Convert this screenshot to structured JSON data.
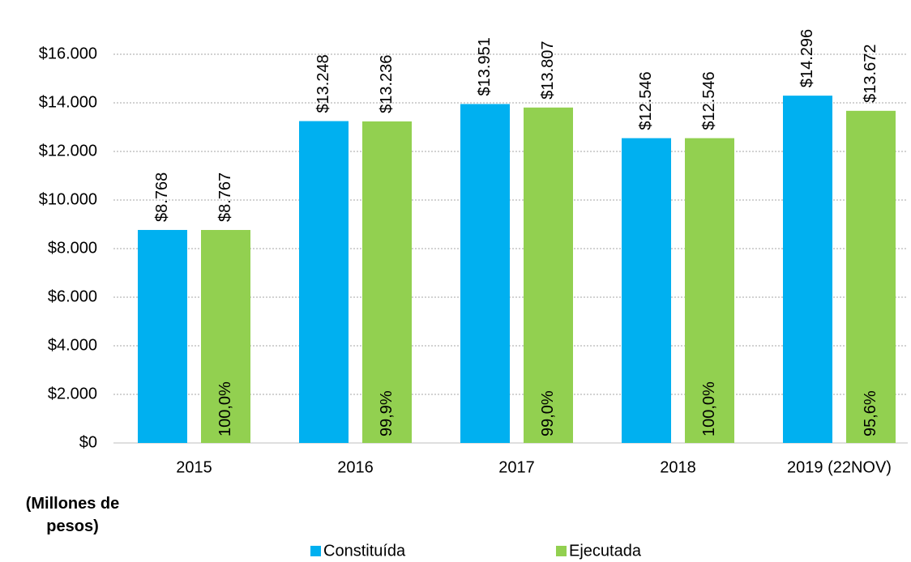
{
  "chart_data": {
    "type": "bar",
    "y_label": "(Millones de pesos)",
    "categories": [
      "2015",
      "2016",
      "2017",
      "2018",
      "2019 (22NOV)"
    ],
    "series": [
      {
        "name": "Constituída",
        "color": "#00b0f0",
        "values": [
          8768,
          13248,
          13951,
          12546,
          14296
        ],
        "value_labels": [
          "$8.768",
          "$13.248",
          "$13.951",
          "$12.546",
          "$14.296"
        ]
      },
      {
        "name": "Ejecutada",
        "color": "#92d050",
        "values": [
          8767,
          13236,
          13807,
          12546,
          13672
        ],
        "value_labels": [
          "$8.767",
          "$13.236",
          "$13.807",
          "$12.546",
          "$13.672"
        ]
      }
    ],
    "execution_percent": {
      "values": [
        100.0,
        99.9,
        99.0,
        100.0,
        95.6
      ],
      "value_labels": [
        "100,0%",
        "99,9%",
        "99,0%",
        "100,0%",
        "95,6%"
      ]
    },
    "ylim": [
      0,
      16000
    ],
    "yticks": [
      {
        "value": 0,
        "label": "$0"
      },
      {
        "value": 2000,
        "label": "$2.000"
      },
      {
        "value": 4000,
        "label": "$4.000"
      },
      {
        "value": 6000,
        "label": "$6.000"
      },
      {
        "value": 8000,
        "label": "$8.000"
      },
      {
        "value": 10000,
        "label": "$10.000"
      },
      {
        "value": 12000,
        "label": "$12.000"
      },
      {
        "value": 14000,
        "label": "$14.000"
      },
      {
        "value": 16000,
        "label": "$16.000"
      }
    ],
    "grid": true,
    "legend": "bottom"
  }
}
